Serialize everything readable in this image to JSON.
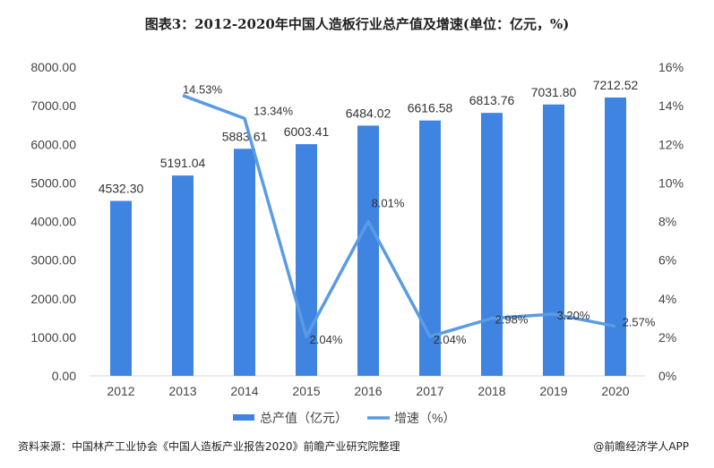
{
  "chart_data": {
    "type": "bar+line",
    "title": "图表3：2012-2020年中国人造板行业总产值及增速(单位：亿元，%)",
    "categories": [
      "2012",
      "2013",
      "2014",
      "2015",
      "2016",
      "2017",
      "2018",
      "2019",
      "2020"
    ],
    "series": [
      {
        "name": "总产值（亿元）",
        "type": "bar",
        "axis": "left",
        "color": "#3e84e0",
        "values": [
          4532.3,
          5191.04,
          5883.61,
          6003.41,
          6484.02,
          6616.58,
          6813.76,
          7031.8,
          7212.52
        ],
        "labels": [
          "4532.30",
          "5191.04",
          "5883.61",
          "6003.41",
          "6484.02",
          "6616.58",
          "6813.76",
          "7031.80",
          "7212.52"
        ]
      },
      {
        "name": "增速（%）",
        "type": "line",
        "axis": "right",
        "color": "#5b9be3",
        "values": [
          null,
          14.53,
          13.34,
          2.04,
          8.01,
          2.04,
          2.98,
          3.2,
          2.57
        ],
        "labels": [
          null,
          "14.53%",
          "13.34%",
          "2.04%",
          "8.01%",
          "2.04%",
          "2.98%",
          "3.20%",
          "2.57%"
        ]
      }
    ],
    "y_left": {
      "range": [
        0,
        8000
      ],
      "ticks": [
        "0.00",
        "1000.00",
        "2000.00",
        "3000.00",
        "4000.00",
        "5000.00",
        "6000.00",
        "7000.00",
        "8000.00"
      ]
    },
    "y_right": {
      "range": [
        0,
        16
      ],
      "ticks": [
        "0%",
        "2%",
        "4%",
        "6%",
        "8%",
        "10%",
        "12%",
        "14%",
        "16%"
      ]
    },
    "grid": false,
    "legend": "bottom"
  },
  "footer": {
    "source": "资料来源：中国林产工业协会《中国人造板产业报告2020》前瞻产业研究院整理",
    "brand": "@前瞻经济学人APP"
  }
}
